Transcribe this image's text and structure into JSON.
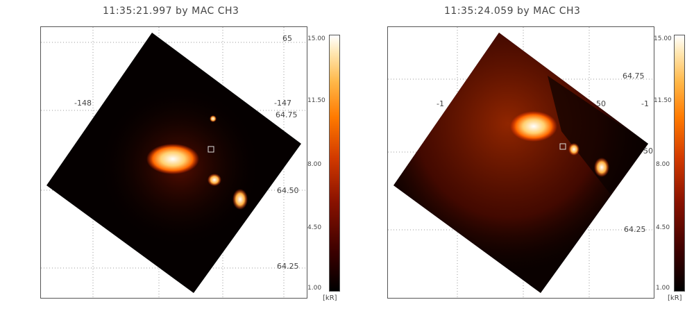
{
  "panels": [
    {
      "title": "11:35:21.997 by MAC CH3",
      "lon_labels": [
        "-148",
        "-147"
      ],
      "lat_labels": [
        "65",
        "64.75",
        "64.50",
        "64.25"
      ],
      "colorbar": {
        "ticks": [
          "15.00",
          "11.50",
          "8.00",
          "4.50",
          "1.00"
        ],
        "unit": "[kR]"
      }
    },
    {
      "title": "11:35:24.059 by MAC CH3",
      "lon_labels": [
        "-1",
        "50",
        "-1"
      ],
      "lat_labels": [
        "64.75",
        "50",
        "64.25"
      ],
      "colorbar": {
        "ticks": [
          "15.00",
          "11.50",
          "8.00",
          "4.50",
          "1.00"
        ],
        "unit": "[kR]"
      }
    }
  ],
  "colormap": {
    "low": "#000000",
    "mid": "#d23a00",
    "high": "#ffffff"
  }
}
